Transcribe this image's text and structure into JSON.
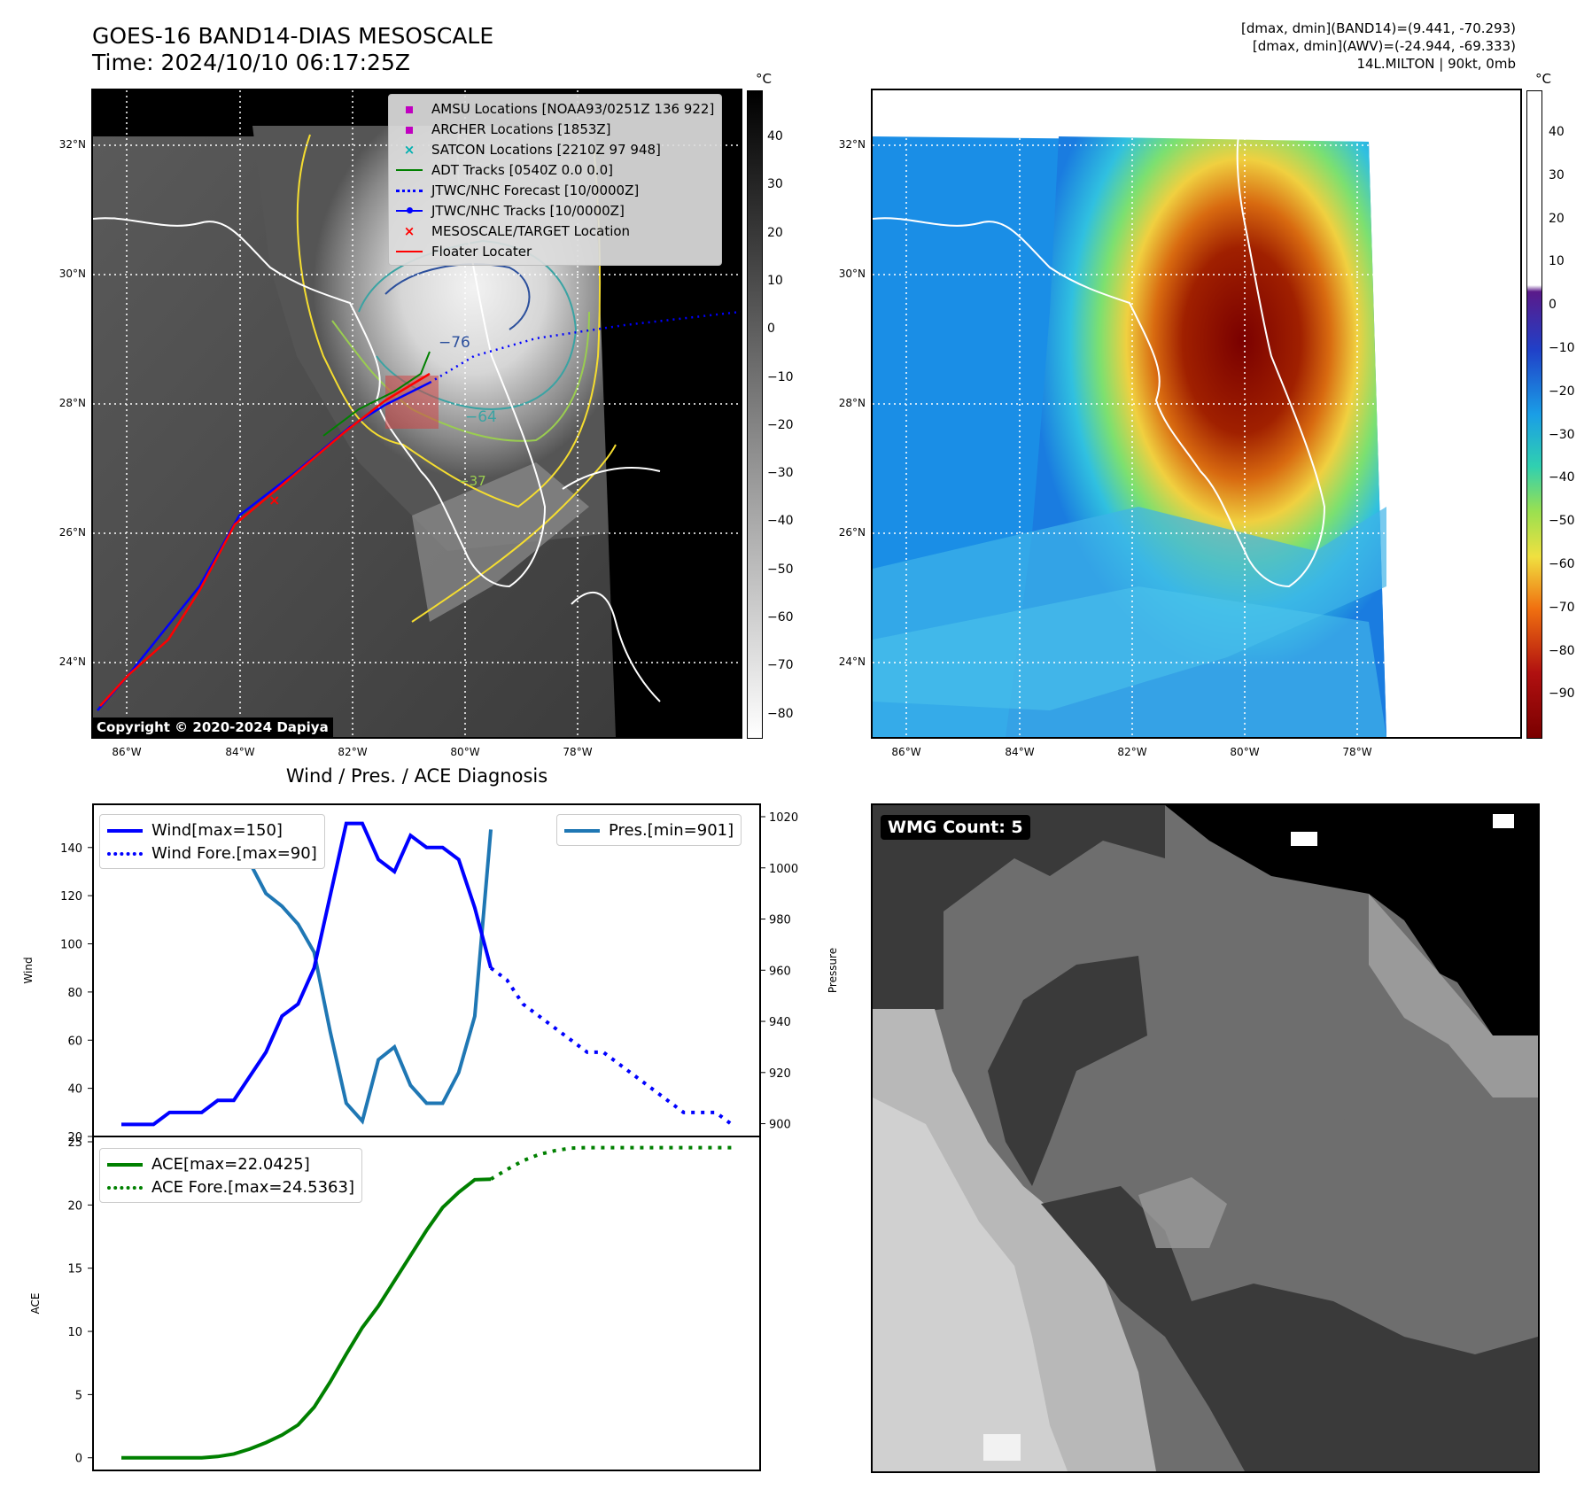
{
  "header": {
    "title_line1": "GOES-16 BAND14-DIAS MESOSCALE",
    "title_line2": "Time: 2024/10/10 06:17:25Z",
    "right_line1": "[dmax, dmin](BAND14)=(9.441, -70.293)",
    "right_line2": "[dmax, dmin](AWV)=(-24.944, -69.333)",
    "right_line3": "14L.MILTON | 90kt, 0mb"
  },
  "map_left": {
    "lon_ticks": [
      "86°W",
      "84°W",
      "82°W",
      "80°W",
      "78°W"
    ],
    "lat_ticks": [
      "32°N",
      "30°N",
      "28°N",
      "26°N",
      "24°N"
    ],
    "colorbar_unit": "°C",
    "colorbar_ticks": [
      "40",
      "30",
      "20",
      "10",
      "0",
      "−10",
      "−20",
      "−30",
      "−40",
      "−50",
      "−60",
      "−70",
      "−80"
    ],
    "contour_labels": [
      "−76",
      "−64",
      "−37"
    ],
    "copyright": "Copyright © 2020-2024 Dapiya",
    "legend": [
      {
        "label": "AMSU Locations [NOAA93/0251Z 136 922]",
        "symbol": "square",
        "color": "#c000c0"
      },
      {
        "label": "ARCHER Locations [1853Z]",
        "symbol": "square",
        "color": "#c000c0"
      },
      {
        "label": "SATCON Locations [2210Z 97 948]",
        "symbol": "x",
        "color": "#00b0b0"
      },
      {
        "label": "ADT Tracks [0540Z 0.0 0.0]",
        "symbol": "line",
        "color": "#008000"
      },
      {
        "label": "JTWC/NHC Forecast [10/0000Z]",
        "symbol": "dotted",
        "color": "#0000ff"
      },
      {
        "label": "JTWC/NHC Tracks [10/0000Z]",
        "symbol": "line-dot",
        "color": "#0000ff"
      },
      {
        "label": "MESOSCALE/TARGET Location",
        "symbol": "x",
        "color": "#ff0000"
      },
      {
        "label": "Floater Locater",
        "symbol": "line",
        "color": "#ff0000"
      }
    ]
  },
  "map_right": {
    "lon_ticks": [
      "86°W",
      "84°W",
      "82°W",
      "80°W",
      "78°W"
    ],
    "lat_ticks": [
      "32°N",
      "30°N",
      "28°N",
      "26°N",
      "24°N"
    ],
    "colorbar_unit": "°C",
    "colorbar_ticks": [
      "40",
      "30",
      "20",
      "10",
      "0",
      "−10",
      "−20",
      "−30",
      "−40",
      "−50",
      "−60",
      "−70",
      "−80",
      "−90"
    ]
  },
  "wmg": {
    "label": "WMG Count: 5"
  },
  "chart_data": [
    {
      "type": "line",
      "title": "Wind / Pres. / ACE Diagnosis",
      "ylabel": "Wind",
      "ylabel_right": "Pressure",
      "ylim": [
        20,
        155
      ],
      "ylim_right": [
        895,
        1020
      ],
      "yticks": [
        20,
        40,
        60,
        80,
        100,
        120,
        140
      ],
      "yticks_right": [
        900,
        920,
        940,
        960,
        980,
        1000,
        1020
      ],
      "series": [
        {
          "name": "Wind[max=150]",
          "axis": "left",
          "color": "#0000ff",
          "style": "solid",
          "x": [
            0,
            1,
            2,
            3,
            4,
            5,
            6,
            7,
            8,
            9,
            10,
            11,
            12,
            13,
            14,
            15,
            16,
            17,
            18,
            19,
            20,
            21,
            22,
            23
          ],
          "values": [
            25,
            25,
            25,
            30,
            30,
            30,
            35,
            35,
            45,
            55,
            70,
            75,
            90,
            120,
            150,
            150,
            135,
            130,
            145,
            140,
            140,
            135,
            115,
            90
          ]
        },
        {
          "name": "Wind Fore.[max=90]",
          "axis": "left",
          "color": "#0000ff",
          "style": "dotted",
          "x": [
            23,
            24,
            25,
            26,
            27,
            28,
            29,
            30,
            31,
            32,
            33,
            34,
            35,
            36,
            37,
            38
          ],
          "values": [
            90,
            85,
            75,
            70,
            65,
            60,
            55,
            55,
            50,
            45,
            40,
            35,
            30,
            30,
            30,
            25
          ]
        },
        {
          "name": "Pres.[min=901]",
          "axis": "right",
          "color": "#1f77b4",
          "style": "solid",
          "x": [
            0,
            1,
            2,
            3,
            4,
            5,
            6,
            7,
            8,
            9,
            10,
            11,
            12,
            13,
            14,
            15,
            16,
            17,
            18,
            19,
            20,
            21,
            22,
            23
          ],
          "values": [
            1015,
            1015,
            1015,
            1011,
            1011,
            1009,
            1008,
            1008,
            1002,
            990,
            985,
            978,
            967,
            936,
            908,
            901,
            925,
            930,
            915,
            908,
            908,
            920,
            942,
            1015
          ]
        }
      ]
    },
    {
      "type": "line",
      "ylabel": "ACE",
      "ylim": [
        -1,
        25
      ],
      "yticks": [
        0,
        5,
        10,
        15,
        20,
        25
      ],
      "series": [
        {
          "name": "ACE[max=22.0425]",
          "color": "#008000",
          "style": "solid",
          "x": [
            0,
            1,
            2,
            3,
            4,
            5,
            6,
            7,
            8,
            9,
            10,
            11,
            12,
            13,
            14,
            15,
            16,
            17,
            18,
            19,
            20,
            21,
            22,
            23
          ],
          "values": [
            0,
            0,
            0,
            0,
            0,
            0,
            0.1,
            0.3,
            0.7,
            1.2,
            1.8,
            2.6,
            4,
            6,
            8.2,
            10.3,
            12,
            14,
            16,
            18,
            19.8,
            21,
            22,
            22.0425
          ]
        },
        {
          "name": "ACE Fore.[max=24.5363]",
          "color": "#008000",
          "style": "dotted",
          "x": [
            23,
            24,
            25,
            26,
            27,
            28,
            29,
            30,
            31,
            32,
            33,
            34,
            35,
            36,
            37,
            38
          ],
          "values": [
            22.0425,
            22.8,
            23.5,
            24,
            24.3,
            24.5,
            24.5363,
            24.5363,
            24.5363,
            24.5363,
            24.5363,
            24.5363,
            24.5363,
            24.5363,
            24.5363,
            24.5363
          ]
        }
      ]
    }
  ]
}
